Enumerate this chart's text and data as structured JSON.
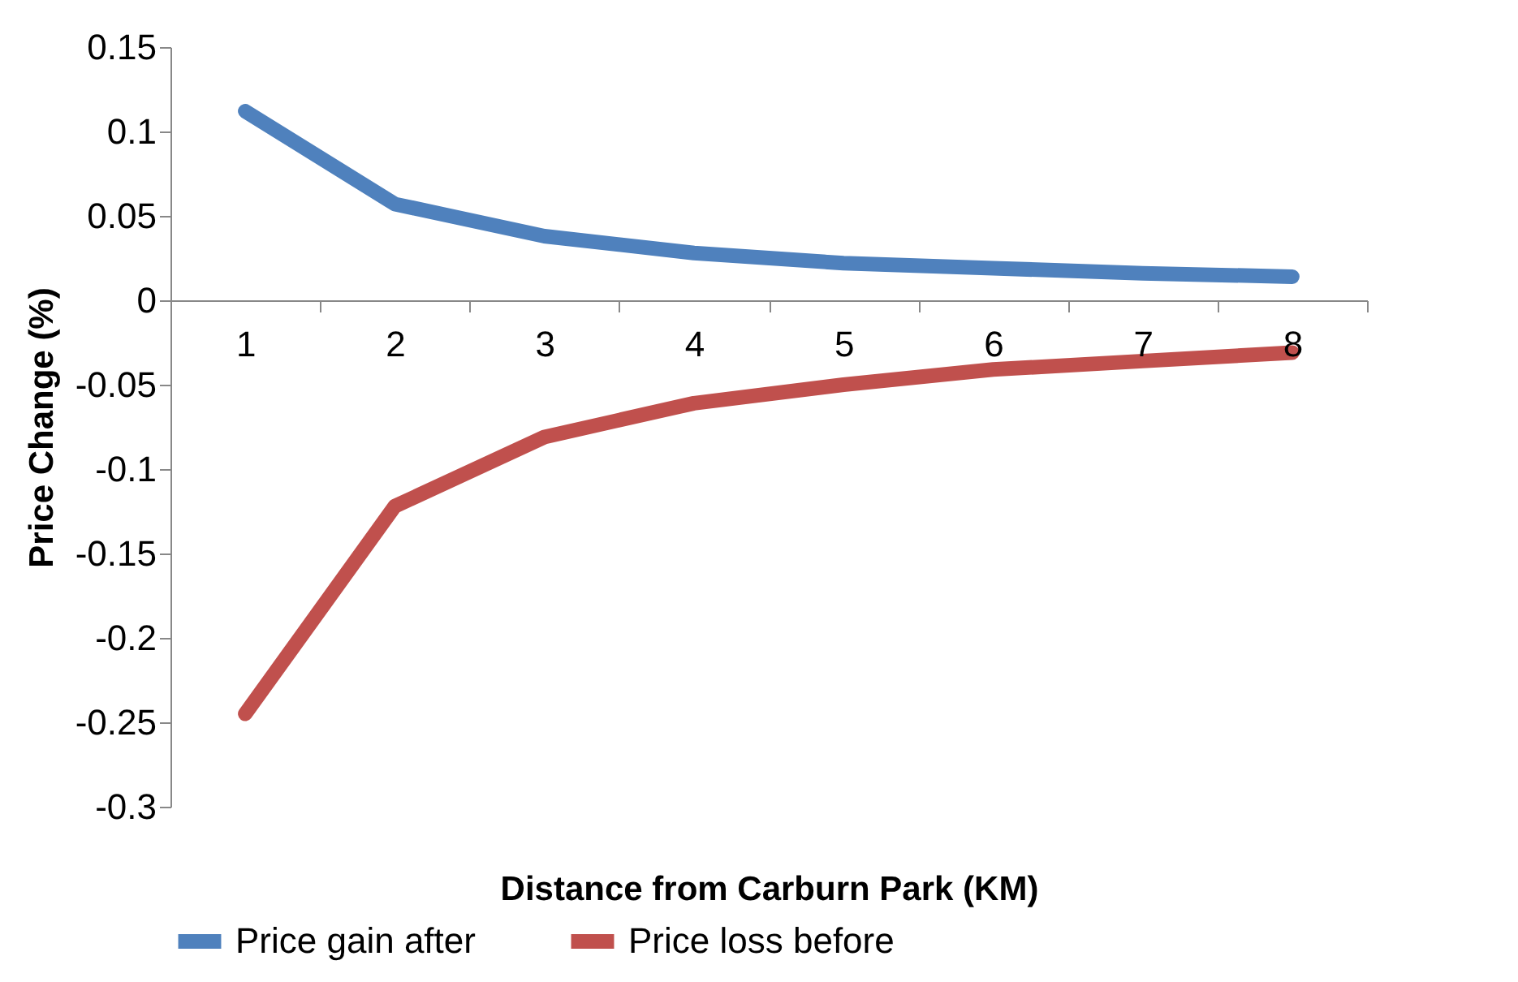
{
  "chart_data": {
    "type": "line",
    "xlabel": "Distance from Carburn Park (KM)",
    "ylabel": "Price Change (%)",
    "categories": [
      "1",
      "2",
      "3",
      "4",
      "5",
      "6",
      "7",
      "8"
    ],
    "series": [
      {
        "name": "Price gain after",
        "color": "#4f81bd",
        "values": [
          0.112,
          0.057,
          0.038,
          0.028,
          0.022,
          0.019,
          0.016,
          0.014
        ]
      },
      {
        "name": "Price loss before",
        "color": "#c0504d",
        "values": [
          -0.245,
          -0.122,
          -0.081,
          -0.061,
          -0.05,
          -0.041,
          -0.036,
          -0.031
        ]
      }
    ],
    "ylim": [
      -0.3,
      0.15
    ],
    "yticks": [
      -0.3,
      -0.25,
      -0.2,
      -0.15,
      -0.1,
      -0.05,
      0,
      0.05,
      0.1,
      0.15
    ],
    "legend": "bottom"
  }
}
